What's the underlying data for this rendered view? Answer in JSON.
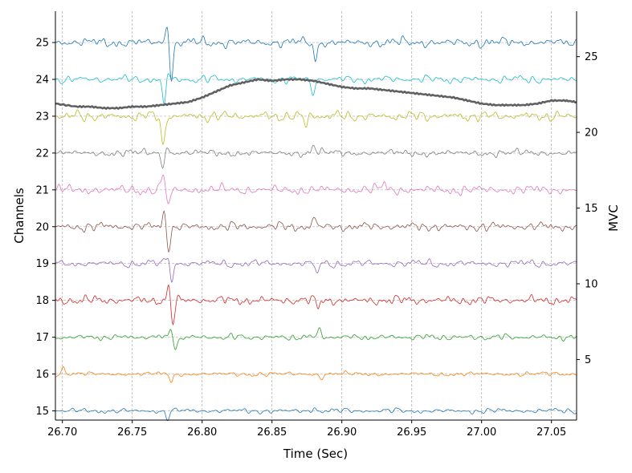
{
  "chart_data": {
    "type": "line",
    "title": "",
    "xlabel": "Time (Sec)",
    "ylabel": "Channels",
    "y2label": "MVC",
    "xlim": [
      26.695,
      27.068
    ],
    "ylim": [
      14.75,
      25.85
    ],
    "y2lim": [
      1.0,
      28.0
    ],
    "x_ticks": [
      "26.70",
      "26.75",
      "26.80",
      "26.85",
      "26.90",
      "26.95",
      "27.00",
      "27.05"
    ],
    "x_tick_values": [
      26.7,
      26.75,
      26.8,
      26.85,
      26.9,
      26.95,
      27.0,
      27.05
    ],
    "y_ticks": [
      "15",
      "16",
      "17",
      "18",
      "19",
      "20",
      "21",
      "22",
      "23",
      "24",
      "25"
    ],
    "y_tick_values": [
      15,
      16,
      17,
      18,
      19,
      20,
      21,
      22,
      23,
      24,
      25
    ],
    "y2_ticks": [
      "5",
      "10",
      "15",
      "20",
      "25"
    ],
    "y2_tick_values": [
      5,
      10,
      15,
      20,
      25
    ],
    "grid": "vertical dashed at x ticks; horizontal dashed at each channel baseline",
    "series": [
      {
        "channel": 15,
        "color": "#1f77b4",
        "amplitude": 0.12,
        "spikes": [
          [
            26.775,
            -0.2
          ],
          [
            26.88,
            0.1
          ]
        ]
      },
      {
        "channel": 16,
        "color": "#ff7f0e",
        "amplitude": 0.1,
        "spikes": [
          [
            26.701,
            0.18
          ],
          [
            26.778,
            -0.2
          ],
          [
            26.885,
            -0.12
          ]
        ]
      },
      {
        "channel": 17,
        "color": "#2ca02c",
        "amplitude": 0.14,
        "spikes": [
          [
            26.778,
            0.25
          ],
          [
            26.781,
            -0.35
          ],
          [
            26.884,
            0.2
          ]
        ]
      },
      {
        "channel": 18,
        "color": "#d62728",
        "amplitude": 0.2,
        "spikes": [
          [
            26.776,
            0.4
          ],
          [
            26.779,
            -0.65
          ],
          [
            26.883,
            -0.2
          ]
        ]
      },
      {
        "channel": 19,
        "color": "#9467bd",
        "amplitude": 0.18,
        "spikes": [
          [
            26.776,
            0.3
          ],
          [
            26.778,
            -0.55
          ],
          [
            26.882,
            -0.3
          ]
        ]
      },
      {
        "channel": 20,
        "color": "#8c564b",
        "amplitude": 0.2,
        "spikes": [
          [
            26.773,
            0.45
          ],
          [
            26.776,
            -0.65
          ],
          [
            26.88,
            0.25
          ]
        ]
      },
      {
        "channel": 21,
        "color": "#e377c2",
        "amplitude": 0.22,
        "spikes": [
          [
            26.772,
            0.4
          ],
          [
            26.776,
            -0.45
          ],
          [
            26.93,
            0.2
          ]
        ]
      },
      {
        "channel": 22,
        "color": "#7f7f7f",
        "amplitude": 0.16,
        "spikes": [
          [
            26.774,
            0.25
          ],
          [
            26.772,
            -0.45
          ],
          [
            26.88,
            0.2
          ]
        ]
      },
      {
        "channel": 23,
        "color": "#bcbd22",
        "amplitude": 0.22,
        "spikes": [
          [
            26.772,
            -0.85
          ],
          [
            26.876,
            0.3
          ],
          [
            26.875,
            -0.5
          ]
        ]
      },
      {
        "channel": 24,
        "color": "#17becf",
        "amplitude": 0.18,
        "spikes": [
          [
            26.775,
            0.3
          ],
          [
            26.773,
            -0.8
          ],
          [
            26.879,
            -0.4
          ]
        ]
      },
      {
        "channel": 25,
        "color": "#1f77b4",
        "amplitude": 0.22,
        "spikes": [
          [
            26.775,
            0.5
          ],
          [
            26.778,
            -1.0
          ],
          [
            26.881,
            -0.45
          ]
        ]
      }
    ],
    "mvc_series": {
      "name": "MVC",
      "color": "#606060",
      "x": [
        26.695,
        26.71,
        26.72,
        26.73,
        26.74,
        26.75,
        26.76,
        26.77,
        26.78,
        26.79,
        26.8,
        26.81,
        26.82,
        26.83,
        26.84,
        26.85,
        26.86,
        26.87,
        26.88,
        26.89,
        26.9,
        26.91,
        26.92,
        26.93,
        26.94,
        26.95,
        26.96,
        26.97,
        26.98,
        26.99,
        27.0,
        27.01,
        27.02,
        27.03,
        27.04,
        27.05,
        27.06,
        27.068
      ],
      "y": [
        21.9,
        21.7,
        21.7,
        21.6,
        21.6,
        21.7,
        21.7,
        21.8,
        21.9,
        22.0,
        22.3,
        22.7,
        23.1,
        23.3,
        23.5,
        23.4,
        23.5,
        23.5,
        23.4,
        23.2,
        23.0,
        22.9,
        22.9,
        22.8,
        22.7,
        22.6,
        22.5,
        22.4,
        22.3,
        22.1,
        21.9,
        21.8,
        21.8,
        21.8,
        21.9,
        22.1,
        22.1,
        22.0
      ]
    }
  }
}
